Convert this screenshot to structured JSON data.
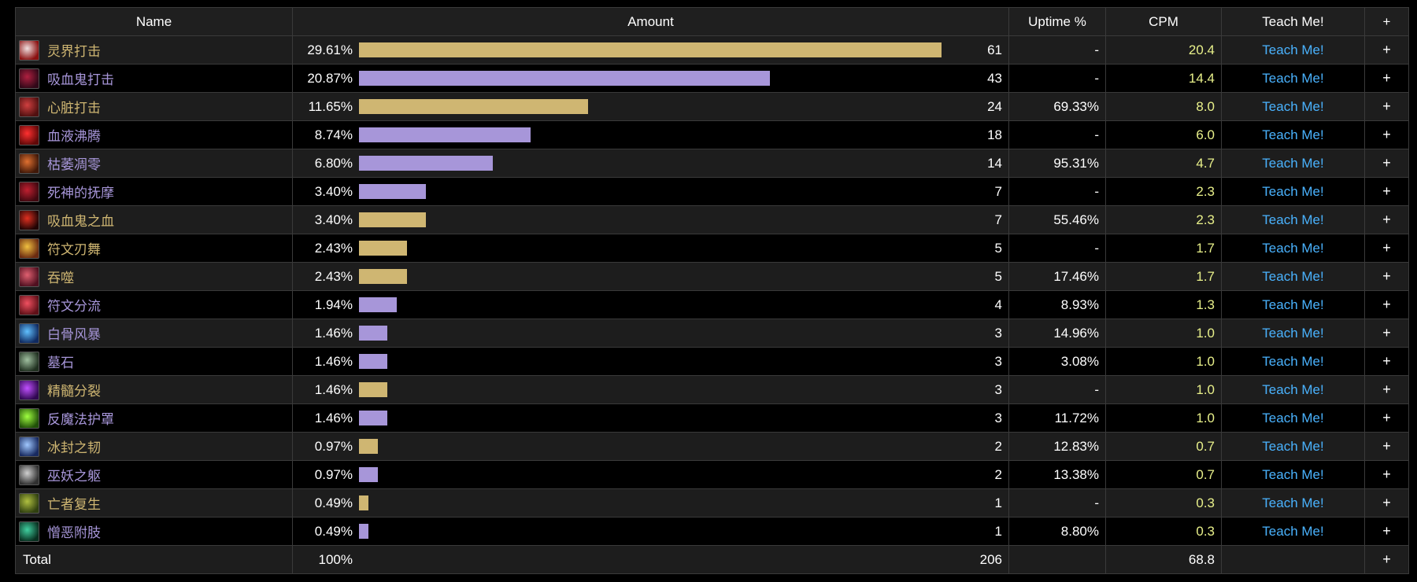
{
  "header": {
    "name": "Name",
    "amount": "Amount",
    "uptime": "Uptime %",
    "cpm": "CPM",
    "teach": "Teach Me!",
    "plus": "+"
  },
  "colors": {
    "gold": "#cfb672",
    "purple": "#a796d9",
    "cpm": "#e8f08a",
    "link": "#4ab3ff"
  },
  "rows": [
    {
      "name": "灵界打击",
      "pct": "29.61%",
      "fraction": 0.2961,
      "count": "61",
      "uptime": "-",
      "cpm": "20.4",
      "color": "gold",
      "icon": "heart-strike-red-icon",
      "icon_colors": [
        "#f0e0e0",
        "#8a1010"
      ]
    },
    {
      "name": "吸血鬼打击",
      "pct": "20.87%",
      "fraction": 0.2087,
      "count": "43",
      "uptime": "-",
      "cpm": "14.4",
      "color": "purple",
      "icon": "blood-strike-dark-icon",
      "icon_colors": [
        "#b02040",
        "#300818"
      ]
    },
    {
      "name": "心脏打击",
      "pct": "11.65%",
      "fraction": 0.1165,
      "count": "24",
      "uptime": "69.33%",
      "cpm": "8.0",
      "color": "gold",
      "icon": "heart-icon",
      "icon_colors": [
        "#d04040",
        "#501010"
      ]
    },
    {
      "name": "血液沸腾",
      "pct": "8.74%",
      "fraction": 0.0874,
      "count": "18",
      "uptime": "-",
      "cpm": "6.0",
      "color": "purple",
      "icon": "blood-boil-icon",
      "icon_colors": [
        "#ff3030",
        "#600808"
      ]
    },
    {
      "name": "枯萎凋零",
      "pct": "6.80%",
      "fraction": 0.068,
      "count": "14",
      "uptime": "95.31%",
      "cpm": "4.7",
      "color": "purple",
      "icon": "death-and-decay-icon",
      "icon_colors": [
        "#e07030",
        "#401808"
      ]
    },
    {
      "name": "死神的抚摩",
      "pct": "3.40%",
      "fraction": 0.034,
      "count": "7",
      "uptime": "-",
      "cpm": "2.3",
      "color": "purple",
      "icon": "reapers-mark-icon",
      "icon_colors": [
        "#c02030",
        "#400810"
      ]
    },
    {
      "name": "吸血鬼之血",
      "pct": "3.40%",
      "fraction": 0.034,
      "count": "7",
      "uptime": "55.46%",
      "cpm": "2.3",
      "color": "gold",
      "icon": "vampiric-blood-icon",
      "icon_colors": [
        "#e03020",
        "#200404"
      ]
    },
    {
      "name": "符文刃舞",
      "pct": "2.43%",
      "fraction": 0.0243,
      "count": "5",
      "uptime": "-",
      "cpm": "1.7",
      "color": "gold",
      "icon": "rune-blade-icon",
      "icon_colors": [
        "#f0c040",
        "#6a2a10"
      ]
    },
    {
      "name": "吞噬",
      "pct": "2.43%",
      "fraction": 0.0243,
      "count": "5",
      "uptime": "17.46%",
      "cpm": "1.7",
      "color": "gold",
      "icon": "consume-icon",
      "icon_colors": [
        "#e06070",
        "#501020"
      ]
    },
    {
      "name": "符文分流",
      "pct": "1.94%",
      "fraction": 0.0194,
      "count": "4",
      "uptime": "8.93%",
      "cpm": "1.3",
      "color": "purple",
      "icon": "rune-tap-icon",
      "icon_colors": [
        "#f05060",
        "#601018"
      ]
    },
    {
      "name": "白骨风暴",
      "pct": "1.46%",
      "fraction": 0.0146,
      "count": "3",
      "uptime": "14.96%",
      "cpm": "1.0",
      "color": "purple",
      "icon": "bonestorm-icon",
      "icon_colors": [
        "#60c0ff",
        "#102a60"
      ]
    },
    {
      "name": "墓石",
      "pct": "1.46%",
      "fraction": 0.0146,
      "count": "3",
      "uptime": "3.08%",
      "cpm": "1.0",
      "color": "purple",
      "icon": "tombstone-icon",
      "icon_colors": [
        "#a0c0a0",
        "#203020"
      ]
    },
    {
      "name": "精髓分裂",
      "pct": "1.46%",
      "fraction": 0.0146,
      "count": "3",
      "uptime": "-",
      "cpm": "1.0",
      "color": "gold",
      "icon": "marrowrend-icon",
      "icon_colors": [
        "#c050ff",
        "#300850"
      ]
    },
    {
      "name": "反魔法护罩",
      "pct": "1.46%",
      "fraction": 0.0146,
      "count": "3",
      "uptime": "11.72%",
      "cpm": "1.0",
      "color": "purple",
      "icon": "anti-magic-shell-icon",
      "icon_colors": [
        "#a0ff40",
        "#205008"
      ]
    },
    {
      "name": "冰封之韧",
      "pct": "0.97%",
      "fraction": 0.0097,
      "count": "2",
      "uptime": "12.83%",
      "cpm": "0.7",
      "color": "gold",
      "icon": "icebound-fortitude-icon",
      "icon_colors": [
        "#a0c8ff",
        "#182a60"
      ]
    },
    {
      "name": "巫妖之躯",
      "pct": "0.97%",
      "fraction": 0.0097,
      "count": "2",
      "uptime": "13.38%",
      "cpm": "0.7",
      "color": "purple",
      "icon": "lichborne-icon",
      "icon_colors": [
        "#d0d0d0",
        "#303030"
      ]
    },
    {
      "name": "亡者复生",
      "pct": "0.49%",
      "fraction": 0.0049,
      "count": "1",
      "uptime": "-",
      "cpm": "0.3",
      "color": "gold",
      "icon": "raise-dead-icon",
      "icon_colors": [
        "#b0c040",
        "#304010"
      ]
    },
    {
      "name": "憎恶附肢",
      "pct": "0.49%",
      "fraction": 0.0049,
      "count": "1",
      "uptime": "8.80%",
      "cpm": "0.3",
      "color": "purple",
      "icon": "abomination-limb-icon",
      "icon_colors": [
        "#40d0a0",
        "#083020"
      ]
    }
  ],
  "row_teach": "Teach Me!",
  "row_plus": "+",
  "footer": {
    "label": "Total",
    "pct": "100%",
    "count": "206",
    "cpm": "68.8",
    "plus": "+"
  }
}
